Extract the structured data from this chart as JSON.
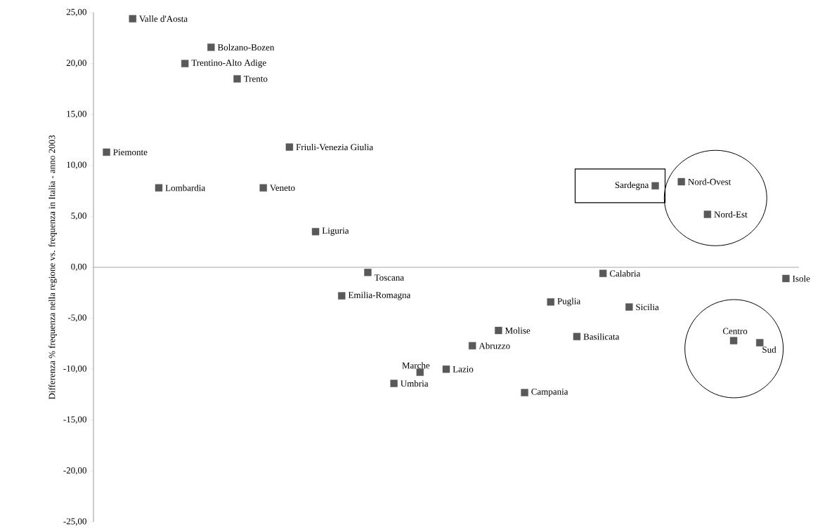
{
  "chart_data": {
    "type": "scatter",
    "ylabel": "Differenza % frequenza nella regione vs. frequenza in Italia - anno 2003",
    "categories": [
      null,
      null,
      null,
      null,
      null,
      null,
      null,
      null,
      null,
      null,
      null,
      null,
      null,
      null,
      null,
      null,
      null,
      null,
      null,
      null,
      null,
      null,
      null,
      null,
      null,
      null,
      null
    ],
    "value_labels": [
      "Piemonte",
      "Valle d'Aosta",
      "Lombardia",
      "Trentino-Alto Adige",
      "Bolzano-Bozen",
      "Trento",
      "Veneto",
      "Friuli-Venezia Giulia",
      "Liguria",
      "Emilia-Romagna",
      "Toscana",
      "Umbria",
      "Marche",
      "Lazio",
      "Abruzzo",
      "Molise",
      "Campania",
      "Puglia",
      "Basilicata",
      "Calabria",
      "Sicilia",
      "Sardegna",
      "Nord-Ovest",
      "Nord-Est",
      "Centro",
      "Sud",
      "Isole"
    ],
    "values": [
      11.3,
      24.4,
      7.8,
      20.0,
      21.6,
      18.5,
      7.8,
      11.8,
      3.5,
      -2.8,
      -0.5,
      -11.4,
      -10.3,
      -10.0,
      -7.7,
      -6.2,
      -12.3,
      -3.4,
      -6.8,
      -0.6,
      -3.9,
      8.0,
      8.4,
      5.2,
      -7.2,
      -7.4,
      -1.1
    ],
    "color": "#595959",
    "marker": "square",
    "ylim": [
      -25,
      25
    ],
    "yticks": [
      {
        "value": -25,
        "label": "-25,00"
      },
      {
        "value": -20,
        "label": "-20,00"
      },
      {
        "value": -15,
        "label": "-15,00"
      },
      {
        "value": -10,
        "label": "-10,00"
      },
      {
        "value": -5,
        "label": "-5,00"
      },
      {
        "value": 0,
        "label": "0,00"
      },
      {
        "value": 5,
        "label": "5,00"
      },
      {
        "value": 10,
        "label": "10,00"
      },
      {
        "value": 15,
        "label": "15,00"
      },
      {
        "value": 20,
        "label": "20,00"
      },
      {
        "value": 25,
        "label": "25,00"
      }
    ],
    "tick_labels": "y",
    "ref_lines": [
      {
        "axis": "y",
        "value": 0,
        "color": "#a6a6a6"
      }
    ],
    "grid": false
  }
}
